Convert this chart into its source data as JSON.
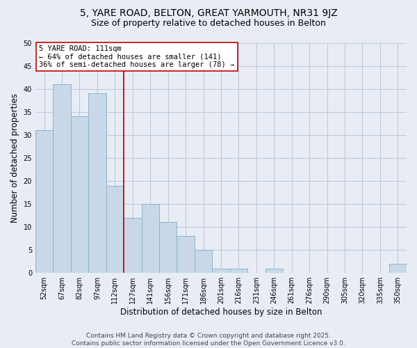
{
  "title1": "5, YARE ROAD, BELTON, GREAT YARMOUTH, NR31 9JZ",
  "title2": "Size of property relative to detached houses in Belton",
  "xlabel": "Distribution of detached houses by size in Belton",
  "ylabel": "Number of detached properties",
  "categories": [
    "52sqm",
    "67sqm",
    "82sqm",
    "97sqm",
    "112sqm",
    "127sqm",
    "141sqm",
    "156sqm",
    "171sqm",
    "186sqm",
    "201sqm",
    "216sqm",
    "231sqm",
    "246sqm",
    "261sqm",
    "276sqm",
    "290sqm",
    "305sqm",
    "320sqm",
    "335sqm",
    "350sqm"
  ],
  "values": [
    31,
    41,
    34,
    39,
    19,
    12,
    15,
    11,
    8,
    5,
    1,
    1,
    0,
    1,
    0,
    0,
    0,
    0,
    0,
    0,
    2
  ],
  "bar_color": "#c8d8e8",
  "bar_edge_color": "#8ab4cc",
  "grid_color": "#c0c8d8",
  "background_color": "#e8edf5",
  "vline_x": 4.5,
  "vline_color": "#cc0000",
  "annotation_text": "5 YARE ROAD: 111sqm\n← 64% of detached houses are smaller (141)\n36% of semi-detached houses are larger (78) →",
  "ylim": [
    0,
    50
  ],
  "yticks": [
    0,
    5,
    10,
    15,
    20,
    25,
    30,
    35,
    40,
    45,
    50
  ],
  "footer_text": "Contains HM Land Registry data © Crown copyright and database right 2025.\nContains public sector information licensed under the Open Government Licence v3.0.",
  "title1_fontsize": 10,
  "title2_fontsize": 9,
  "xlabel_fontsize": 8.5,
  "ylabel_fontsize": 8.5,
  "tick_fontsize": 7,
  "annotation_fontsize": 7.5,
  "footer_fontsize": 6.5
}
